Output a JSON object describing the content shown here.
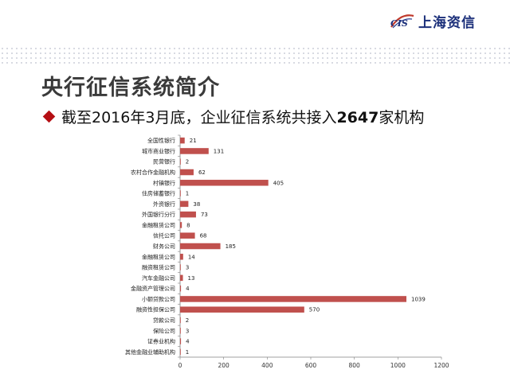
{
  "brand": {
    "logo_mark": "CIS",
    "logo_text": "上海资信",
    "accent_color": "#b8121b"
  },
  "slide": {
    "title": "央行征信系统简介",
    "bullet_prefix": "截至2016年3月底，企业征信系统共接入",
    "bullet_number": "2647",
    "bullet_suffix": "家机构"
  },
  "chart_data": {
    "type": "bar",
    "orientation": "horizontal",
    "categories": [
      "全国性银行",
      "城市商业银行",
      "民营银行",
      "农村合作金融机构",
      "村镇银行",
      "住房储蓄银行",
      "外资银行",
      "外国银行分行",
      "金融租赁公司",
      "信托公司",
      "财务公司",
      "金融租赁公司",
      "融资租赁公司",
      "汽车金融公司",
      "金融资产管理公司",
      "小额贷款公司",
      "融资性担保公司",
      "贷款公司",
      "保险公司",
      "证券业机构",
      "其他金融业辅助机构"
    ],
    "values": [
      21,
      131,
      2,
      62,
      405,
      1,
      38,
      73,
      8,
      68,
      185,
      14,
      3,
      13,
      4,
      1039,
      570,
      2,
      3,
      4,
      1
    ],
    "xlim": [
      0,
      1200
    ],
    "xticks": [
      "0",
      "200",
      "400",
      "600",
      "800",
      "1000",
      "1200"
    ],
    "bar_color": "#c0504d",
    "grid": false
  }
}
